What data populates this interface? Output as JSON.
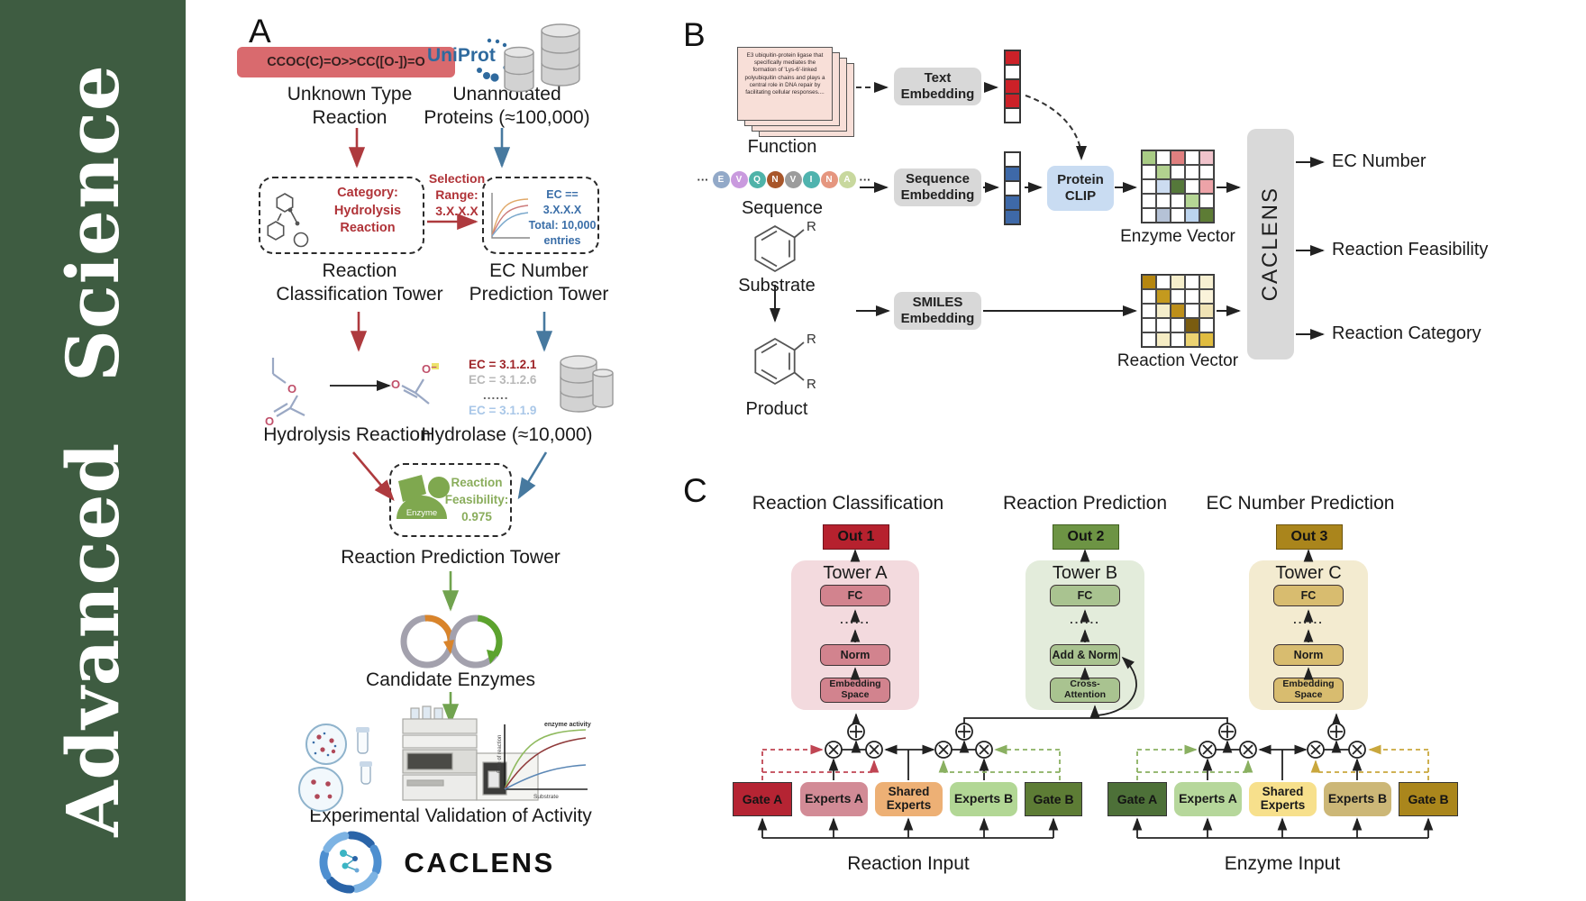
{
  "colors": {
    "band_green": "#3e5c41",
    "red_flow": "#ae3a3e",
    "blue_flow": "#47799f",
    "green_flow": "#71a34f",
    "gold_flow": "#c9a73d"
  },
  "journal": {
    "name": "Advanced Science"
  },
  "panel_a": {
    "label": "A",
    "smiles": "CCOC(C)=O>>CC([O-])=O",
    "unknown_type": "Unknown Type\nReaction",
    "uniprot": "UniProt",
    "unannotated": "Unannotated\nProteins (≈100,000)",
    "category_box": "Category:\nHydrolysis\nReaction",
    "selection_range": "Selection\nRange:\n3.X.X.X",
    "ec_filter": "EC == 3.X.X.X\nTotal: 10,000\nentries",
    "classification_tower": "Reaction\nClassification Tower",
    "ec_tower": "EC Number\nPrediction Tower",
    "hydrolysis_reaction": "Hydrolysis Reaction",
    "ec_list": [
      "EC = 3.1.2.1",
      "EC = 3.1.2.6",
      "......",
      "EC = 3.1.1.9"
    ],
    "hydrolase": "Hydrolase (≈10,000)",
    "enzyme_label": "Enzyme",
    "feasibility": "Reaction\nFeasibility:\n0.975",
    "prediction_tower": "Reaction Prediction Tower",
    "candidate_enzymes": "Candidate Enzymes",
    "plot": {
      "curve_label": "enzyme activity",
      "ylabel": "Rate of reaction",
      "xlabel": "Substrate"
    },
    "validation": "Experimental Validation of Activity",
    "brand": "CACLENS"
  },
  "panel_b": {
    "label": "B",
    "function_card": "E3 ubiquitin-protein ligase that specifically mediates the formation of 'Lys-6'-linked polyubiquitin chains and plays a central role in DNA repair by facilitating cellular responses....",
    "function_label": "Function",
    "ellipsis": "···",
    "residues": [
      {
        "t": "E",
        "c": "#92a9c8"
      },
      {
        "t": "V",
        "c": "#c99ade"
      },
      {
        "t": "Q",
        "c": "#4fb3a9"
      },
      {
        "t": "N",
        "c": "#a8562a"
      },
      {
        "t": "V",
        "c": "#9c9c9c"
      },
      {
        "t": "I",
        "c": "#4fb3ae"
      },
      {
        "t": "N",
        "c": "#e5967f"
      },
      {
        "t": "A",
        "c": "#c8d89e"
      }
    ],
    "sequence_label": "Sequence",
    "substrate_label": "Substrate",
    "product_label": "Product",
    "r_label": "R",
    "text_embedding": "Text\nEmbedding",
    "sequence_embedding": "Sequence\nEmbedding",
    "smiles_embedding": "SMILES\nEmbedding",
    "protein_clip": "Protein\nCLIP",
    "text_vector": [
      "#cc2128",
      "#ffffff",
      "#cc2128",
      "#cc2128",
      "#ffffff"
    ],
    "seq_vector": [
      "#ffffff",
      "#3e69a8",
      "#ffffff",
      "#3e69a8",
      "#3e69a8"
    ],
    "enzyme_matrix": [
      [
        "#a9cc85",
        "#ffffff",
        "#e07f7f",
        "#ffffff",
        "#f0c3cb"
      ],
      [
        "#ffffff",
        "#b2d18f",
        "#ffffff",
        "#ffffff",
        "#ffffff"
      ],
      [
        "#ffffff",
        "#ccdcf0",
        "#55783a",
        "#ffffff",
        "#eda3a8"
      ],
      [
        "#ffffff",
        "#ffffff",
        "#ffffff",
        "#b5d695",
        "#ffffff"
      ],
      [
        "#ffffff",
        "#b5c2d6",
        "#ffffff",
        "#bcd4ee",
        "#5d7c35"
      ]
    ],
    "reaction_matrix": [
      [
        "#b5860f",
        "#ffffff",
        "#f5eecb",
        "#ffffff",
        "#f7f0d2"
      ],
      [
        "#ffffff",
        "#c49a1e",
        "#ffffff",
        "#ffffff",
        "#faf3da"
      ],
      [
        "#ffffff",
        "#f5eecb",
        "#bd8f1a",
        "#ffffff",
        "#f0e3b5"
      ],
      [
        "#ffffff",
        "#ffffff",
        "#ffffff",
        "#7a5c10",
        "#ffffff"
      ],
      [
        "#ffffff",
        "#f5ecc4",
        "#ffffff",
        "#ecd372",
        "#e0bc3f"
      ]
    ],
    "enzyme_vector_label": "Enzyme Vector",
    "reaction_vector_label": "Reaction Vector",
    "caclens": "CACLENS",
    "outputs": [
      "EC Number",
      "Reaction Feasibility",
      "Reaction Category"
    ]
  },
  "panel_c": {
    "label": "C",
    "dots": "......",
    "groups": [
      {
        "title": "Reaction Classification",
        "out": "Out 1",
        "tower": "Tower A",
        "fc": "FC",
        "mid": "Norm",
        "bottom": "Embedding\nSpace"
      },
      {
        "title": "Reaction Prediction",
        "out": "Out 2",
        "tower": "Tower B",
        "fc": "FC",
        "mid": "Add & Norm",
        "bottom": "Cross-\nAttention"
      },
      {
        "title": "EC Number Prediction",
        "out": "Out 3",
        "tower": "Tower C",
        "fc": "FC",
        "mid": "Norm",
        "bottom": "Embedding\nSpace"
      }
    ],
    "moe_reaction": {
      "gate_a": "Gate A",
      "experts_a": "Experts A",
      "shared": "Shared\nExperts",
      "experts_b": "Experts B",
      "gate_b": "Gate B",
      "input_label": "Reaction Input"
    },
    "moe_enzyme": {
      "gate_a": "Gate A",
      "experts_a": "Experts A",
      "shared": "Shared\nExperts",
      "experts_b": "Experts B",
      "gate_b": "Gate B",
      "input_label": "Enzyme Input"
    }
  }
}
